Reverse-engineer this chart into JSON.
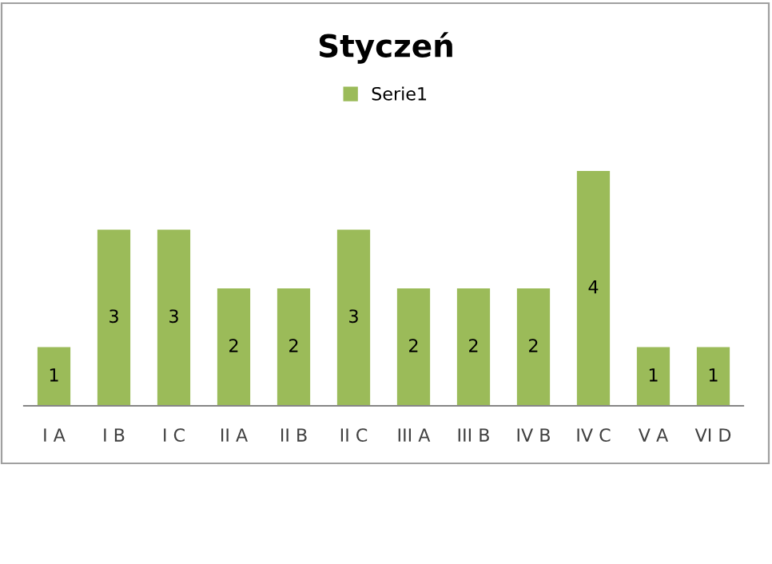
{
  "chart_data": {
    "type": "bar",
    "title": "Styczeń",
    "categories": [
      "I A",
      "I B",
      "I C",
      "II A",
      "II B",
      "II C",
      "III A",
      "III B",
      "IV B",
      "IV C",
      "V A",
      "VI D"
    ],
    "series": [
      {
        "name": "Serie1",
        "color": "#9bbb59",
        "values": [
          1,
          3,
          3,
          2,
          2,
          3,
          2,
          2,
          2,
          4,
          1,
          1
        ]
      }
    ],
    "data_labels": true,
    "legend": "top",
    "grid": false
  }
}
